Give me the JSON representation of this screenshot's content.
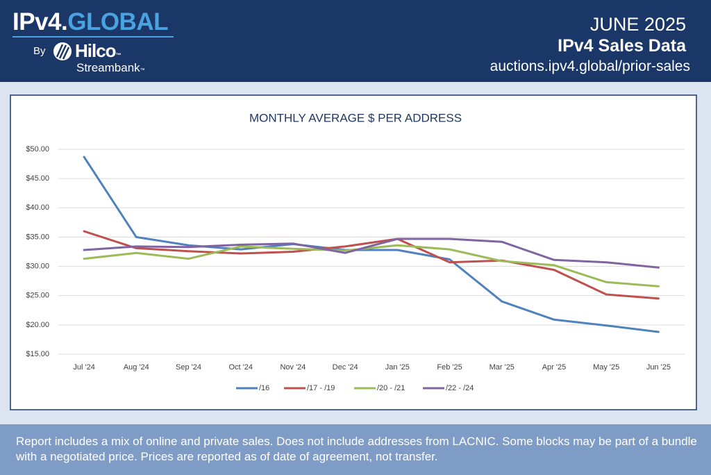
{
  "header": {
    "logo": [
      "IPv4.",
      "GLOBAL"
    ],
    "by": "By",
    "brand": "Hilco",
    "brand_sub": "Streambank",
    "tm1": "™",
    "tm2": "™",
    "date": "JUNE 2025",
    "title": "IPv4 Sales Data",
    "url": "auctions.ipv4.global/prior-sales"
  },
  "chart_data": {
    "type": "line",
    "title": "MONTHLY AVERAGE $ PER ADDRESS",
    "categories": [
      "Jul '24",
      "Aug '24",
      "Sep '24",
      "Oct '24",
      "Nov '24",
      "Dec '24",
      "Jan '25",
      "Feb '25",
      "Mar '25",
      "Apr '25",
      "May '25",
      "Jun '25"
    ],
    "series": [
      {
        "name": "/16",
        "color": "#4f81bd",
        "values": [
          48.7,
          35.0,
          33.6,
          32.9,
          33.8,
          32.8,
          32.8,
          31.2,
          24.0,
          20.9,
          19.9,
          18.8
        ]
      },
      {
        "name": "/17 - /19",
        "color": "#c0504d",
        "values": [
          36.0,
          33.1,
          32.6,
          32.2,
          32.5,
          33.4,
          34.7,
          30.7,
          31.0,
          29.4,
          25.2,
          24.5
        ]
      },
      {
        "name": "/20 - /21",
        "color": "#9bbb59",
        "values": [
          31.3,
          32.3,
          31.3,
          33.4,
          33.0,
          32.7,
          33.6,
          32.9,
          30.9,
          30.2,
          27.3,
          26.6
        ]
      },
      {
        "name": "/22 - /24",
        "color": "#8064a2",
        "values": [
          32.8,
          33.4,
          33.3,
          33.7,
          33.9,
          32.3,
          34.7,
          34.7,
          34.2,
          31.1,
          30.7,
          29.8
        ]
      }
    ],
    "ylim": [
      15,
      50
    ],
    "yticks": [
      {
        "value": 15,
        "label": "$15.00"
      },
      {
        "value": 20,
        "label": "$20.00"
      },
      {
        "value": 25,
        "label": "$25.00"
      },
      {
        "value": 30,
        "label": "$30.00"
      },
      {
        "value": 35,
        "label": "$35.00"
      },
      {
        "value": 40,
        "label": "$40.00"
      },
      {
        "value": 45,
        "label": "$45.00"
      },
      {
        "value": 50,
        "label": "$50.00"
      }
    ],
    "grid": true,
    "legend": "bottom"
  },
  "footer": {
    "text": "Report includes a mix of online and private sales. Does not include addresses from LACNIC. Some blocks may be part of a bundle with a negotiated price. Prices are reported as of date of agreement, not transfer."
  }
}
